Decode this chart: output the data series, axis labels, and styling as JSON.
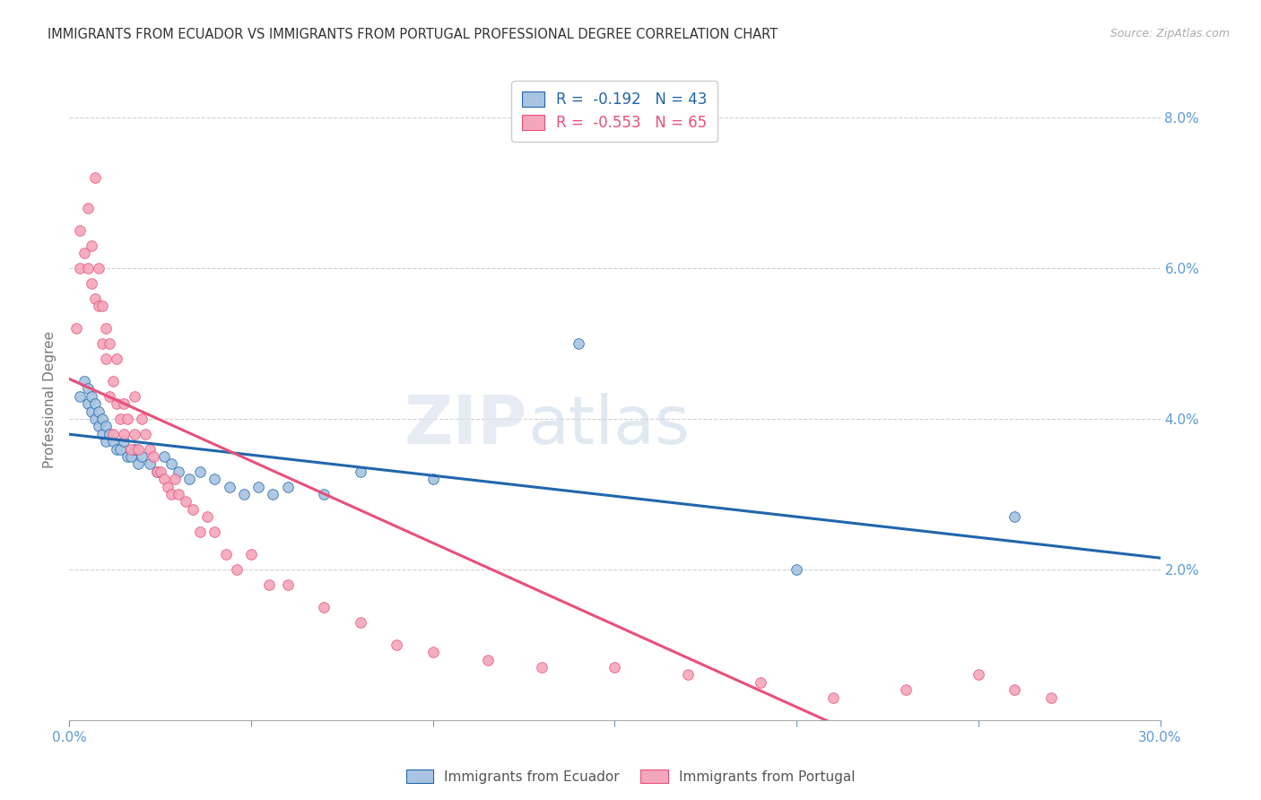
{
  "title": "IMMIGRANTS FROM ECUADOR VS IMMIGRANTS FROM PORTUGAL PROFESSIONAL DEGREE CORRELATION CHART",
  "source_text": "Source: ZipAtlas.com",
  "ylabel": "Professional Degree",
  "xlim": [
    0.0,
    0.3
  ],
  "ylim": [
    0.0,
    0.085
  ],
  "x_ticks": [
    0.0,
    0.05,
    0.1,
    0.15,
    0.2,
    0.25,
    0.3
  ],
  "x_tick_labels": [
    "0.0%",
    "",
    "",
    "",
    "",
    "",
    "30.0%"
  ],
  "y_ticks_right": [
    0.02,
    0.04,
    0.06,
    0.08
  ],
  "y_tick_labels_right": [
    "2.0%",
    "4.0%",
    "6.0%",
    "8.0%"
  ],
  "ecuador_color": "#a8c4e0",
  "portugal_color": "#f4a7bb",
  "trendline_ecuador_color": "#2166ac",
  "trendline_portugal_color": "#e8507a",
  "legend_ecuador_label": "Immigrants from Ecuador",
  "legend_portugal_label": "Immigrants from Portugal",
  "R_ecuador": -0.192,
  "N_ecuador": 43,
  "R_portugal": -0.553,
  "N_portugal": 65,
  "watermark": "ZIPatlas",
  "ecuador_x": [
    0.003,
    0.004,
    0.005,
    0.005,
    0.006,
    0.006,
    0.007,
    0.007,
    0.008,
    0.008,
    0.009,
    0.009,
    0.01,
    0.01,
    0.011,
    0.012,
    0.013,
    0.014,
    0.015,
    0.016,
    0.017,
    0.018,
    0.019,
    0.02,
    0.022,
    0.024,
    0.026,
    0.028,
    0.03,
    0.033,
    0.036,
    0.04,
    0.044,
    0.048,
    0.052,
    0.056,
    0.06,
    0.07,
    0.08,
    0.1,
    0.14,
    0.2,
    0.26
  ],
  "ecuador_y": [
    0.043,
    0.045,
    0.044,
    0.042,
    0.043,
    0.041,
    0.042,
    0.04,
    0.041,
    0.039,
    0.04,
    0.038,
    0.039,
    0.037,
    0.038,
    0.037,
    0.036,
    0.036,
    0.037,
    0.035,
    0.035,
    0.036,
    0.034,
    0.035,
    0.034,
    0.033,
    0.035,
    0.034,
    0.033,
    0.032,
    0.033,
    0.032,
    0.031,
    0.03,
    0.031,
    0.03,
    0.031,
    0.03,
    0.033,
    0.032,
    0.05,
    0.02,
    0.027
  ],
  "portugal_x": [
    0.002,
    0.003,
    0.003,
    0.004,
    0.005,
    0.005,
    0.006,
    0.006,
    0.007,
    0.007,
    0.008,
    0.008,
    0.009,
    0.009,
    0.01,
    0.01,
    0.011,
    0.011,
    0.012,
    0.012,
    0.013,
    0.013,
    0.014,
    0.015,
    0.015,
    0.016,
    0.017,
    0.018,
    0.018,
    0.019,
    0.02,
    0.021,
    0.022,
    0.023,
    0.024,
    0.025,
    0.026,
    0.027,
    0.028,
    0.029,
    0.03,
    0.032,
    0.034,
    0.036,
    0.038,
    0.04,
    0.043,
    0.046,
    0.05,
    0.055,
    0.06,
    0.07,
    0.08,
    0.09,
    0.1,
    0.115,
    0.13,
    0.15,
    0.17,
    0.19,
    0.21,
    0.23,
    0.25,
    0.26,
    0.27
  ],
  "portugal_y": [
    0.052,
    0.06,
    0.065,
    0.062,
    0.06,
    0.068,
    0.058,
    0.063,
    0.056,
    0.072,
    0.055,
    0.06,
    0.05,
    0.055,
    0.048,
    0.052,
    0.043,
    0.05,
    0.038,
    0.045,
    0.042,
    0.048,
    0.04,
    0.038,
    0.042,
    0.04,
    0.036,
    0.038,
    0.043,
    0.036,
    0.04,
    0.038,
    0.036,
    0.035,
    0.033,
    0.033,
    0.032,
    0.031,
    0.03,
    0.032,
    0.03,
    0.029,
    0.028,
    0.025,
    0.027,
    0.025,
    0.022,
    0.02,
    0.022,
    0.018,
    0.018,
    0.015,
    0.013,
    0.01,
    0.009,
    0.008,
    0.007,
    0.007,
    0.006,
    0.005,
    0.003,
    0.004,
    0.006,
    0.004,
    0.003
  ],
  "background_color": "#ffffff",
  "grid_color": "#d0d0d0",
  "title_color": "#333333",
  "axis_color": "#5b9bd5",
  "marker_size": 70
}
